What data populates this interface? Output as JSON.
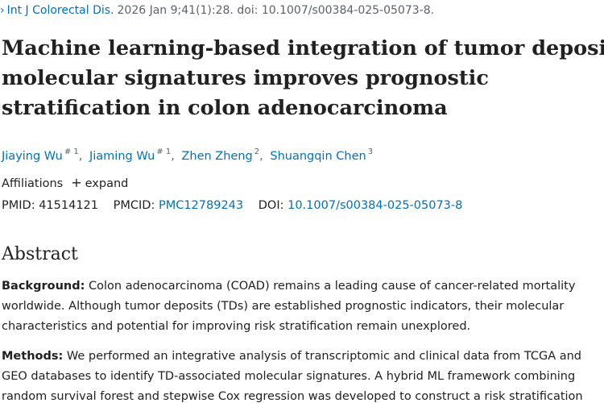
{
  "citation": {
    "chevron": "›",
    "journal": "Int J Colorectal Dis.",
    "details": "2026 Jan 9;41(1):28. doi: 10.1007/s00384-025-05073-8."
  },
  "title_lines": [
    "Machine learning-based integration of tumor deposit",
    "molecular signatures improves prognostic",
    "stratification in colon adenocarcinoma"
  ],
  "authors": [
    {
      "name": "Jiaying Wu",
      "sup": "# 1"
    },
    {
      "name": "Jiaming Wu",
      "sup": "# 1"
    },
    {
      "name": "Zhen Zheng",
      "sup": "2"
    },
    {
      "name": "Shuangqin Chen",
      "sup": "3"
    }
  ],
  "affiliations": {
    "label": "Affiliations",
    "expand_icon": "+",
    "expand_label": "expand"
  },
  "identifiers": {
    "pmid_label": "PMID:",
    "pmid": "41514121",
    "pmcid_label": "PMCID:",
    "pmcid": "PMC12789243",
    "doi_label": "DOI:",
    "doi": "10.1007/s00384-025-05073-8"
  },
  "abstract": {
    "heading": "Abstract",
    "background_label": "Background:",
    "background_lines": [
      " Colon adenocarcinoma (COAD) remains a leading cause of cancer-related mortality",
      "worldwide. Although tumor deposits (TDs) are established prognostic indicators, their molecular",
      "characteristics and potential for improving risk stratification remain unexplored."
    ],
    "methods_label": "Methods:",
    "methods_lines": [
      " We performed an integrative analysis of transcriptomic and clinical data from TCGA and",
      "GEO databases to identify TD-associated molecular signatures. A hybrid ML framework combining",
      "random survival forest and stepwise Cox regression was developed to construct a risk stratification"
    ]
  }
}
